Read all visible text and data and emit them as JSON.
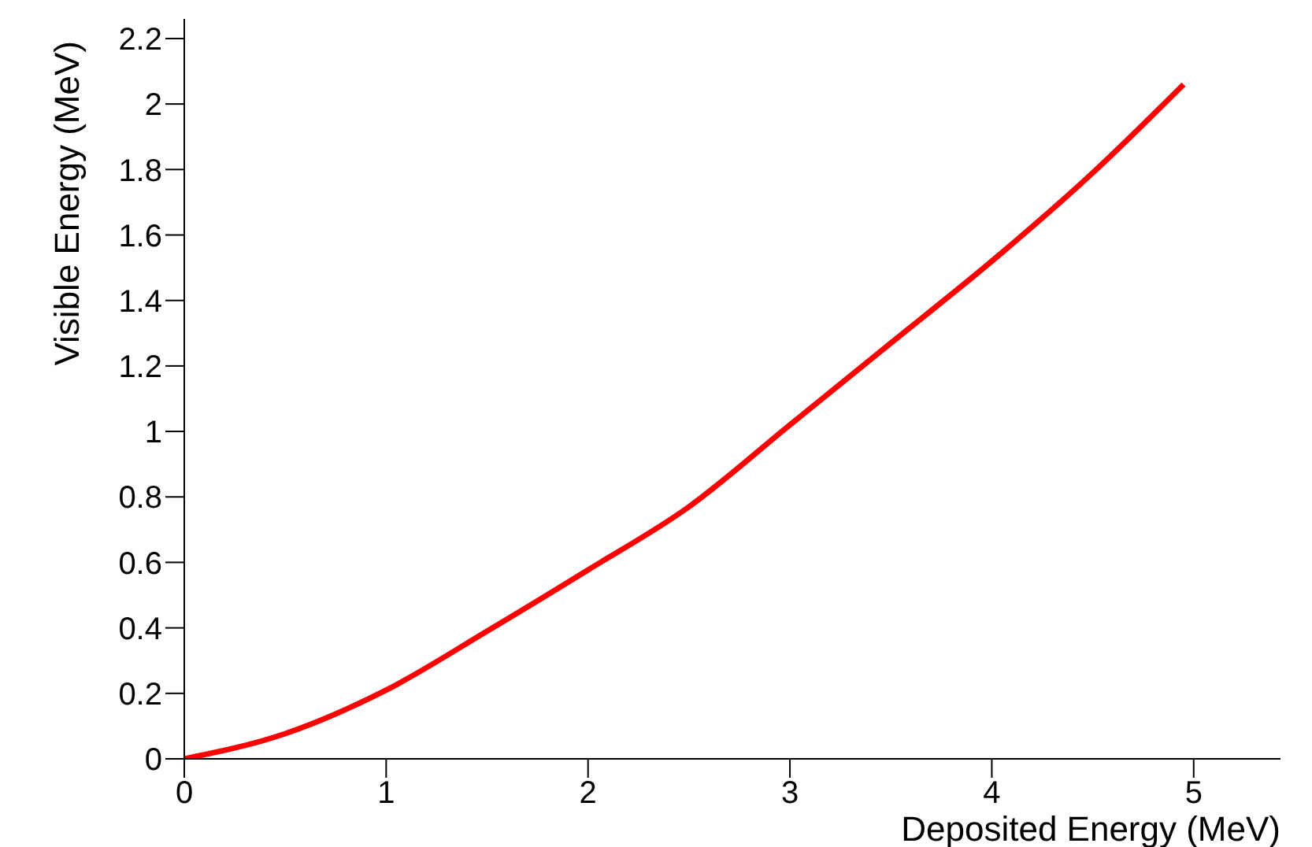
{
  "chart_data": {
    "type": "line",
    "xlabel": "Deposited Energy (MeV)",
    "ylabel": "Visible Energy (MeV)",
    "xlim": [
      0,
      5.43
    ],
    "xticks": [
      0,
      1,
      2,
      3,
      4,
      5
    ],
    "ylim": [
      0,
      2.26
    ],
    "yticks": [
      0,
      0.2,
      0.4,
      0.6,
      0.8,
      1,
      1.2,
      1.4,
      1.6,
      1.8,
      2,
      2.2
    ],
    "grid": false,
    "legend": false,
    "marker": "none",
    "line_style": "solid",
    "series": [
      {
        "color": "#ff0000",
        "x": [
          0,
          0.5,
          1,
          1.5,
          2,
          2.5,
          3,
          3.5,
          4,
          4.5,
          4.95
        ],
        "values": [
          0,
          0.077,
          0.21,
          0.39,
          0.577,
          0.77,
          1.02,
          1.27,
          1.52,
          1.79,
          2.06
        ]
      }
    ]
  }
}
